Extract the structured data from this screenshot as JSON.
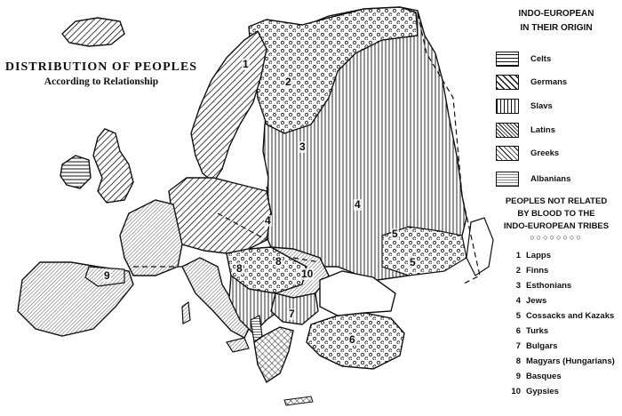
{
  "title": {
    "line1": "DISTRIBUTION OF PEOPLES",
    "line2": "According to Relationship"
  },
  "legend": {
    "heading_line1": "INDO-EUROPEAN",
    "heading_line2": "IN THEIR ORIGIN",
    "items": [
      {
        "label": "Celts",
        "pattern": "horizontal-lines"
      },
      {
        "label": "Germans",
        "pattern": "diagonal-lines"
      },
      {
        "label": "Slavs",
        "pattern": "vertical-lines"
      },
      {
        "label": "Latins",
        "pattern": "fine-diagonal-lines"
      },
      {
        "label": "Greeks",
        "pattern": "crossed-diagonal-lines"
      },
      {
        "label": "Albanians",
        "pattern": "thin-horizontal-lines"
      }
    ],
    "non_related_heading": [
      "PEOPLES NOT RELATED",
      "BY BLOOD TO THE",
      "INDO-EUROPEAN TRIBES"
    ],
    "non_related": [
      {
        "number": "1",
        "label": "Lapps"
      },
      {
        "number": "2",
        "label": "Finns"
      },
      {
        "number": "3",
        "label": "Esthonians"
      },
      {
        "number": "4",
        "label": "Jews"
      },
      {
        "number": "5",
        "label": "Cossacks and Kazaks"
      },
      {
        "number": "6",
        "label": "Turks"
      },
      {
        "number": "7",
        "label": "Bulgars"
      },
      {
        "number": "8",
        "label": "Magyars (Hungarians)"
      },
      {
        "number": "9",
        "label": "Basques"
      },
      {
        "number": "10",
        "label": "Gypsies"
      }
    ]
  },
  "map_labels": [
    "1",
    "2",
    "3",
    "4",
    "4",
    "5",
    "5",
    "6",
    "7",
    "8",
    "8",
    "9",
    "10"
  ],
  "colors": {
    "ink": "#111111",
    "paper": "#ffffff"
  }
}
